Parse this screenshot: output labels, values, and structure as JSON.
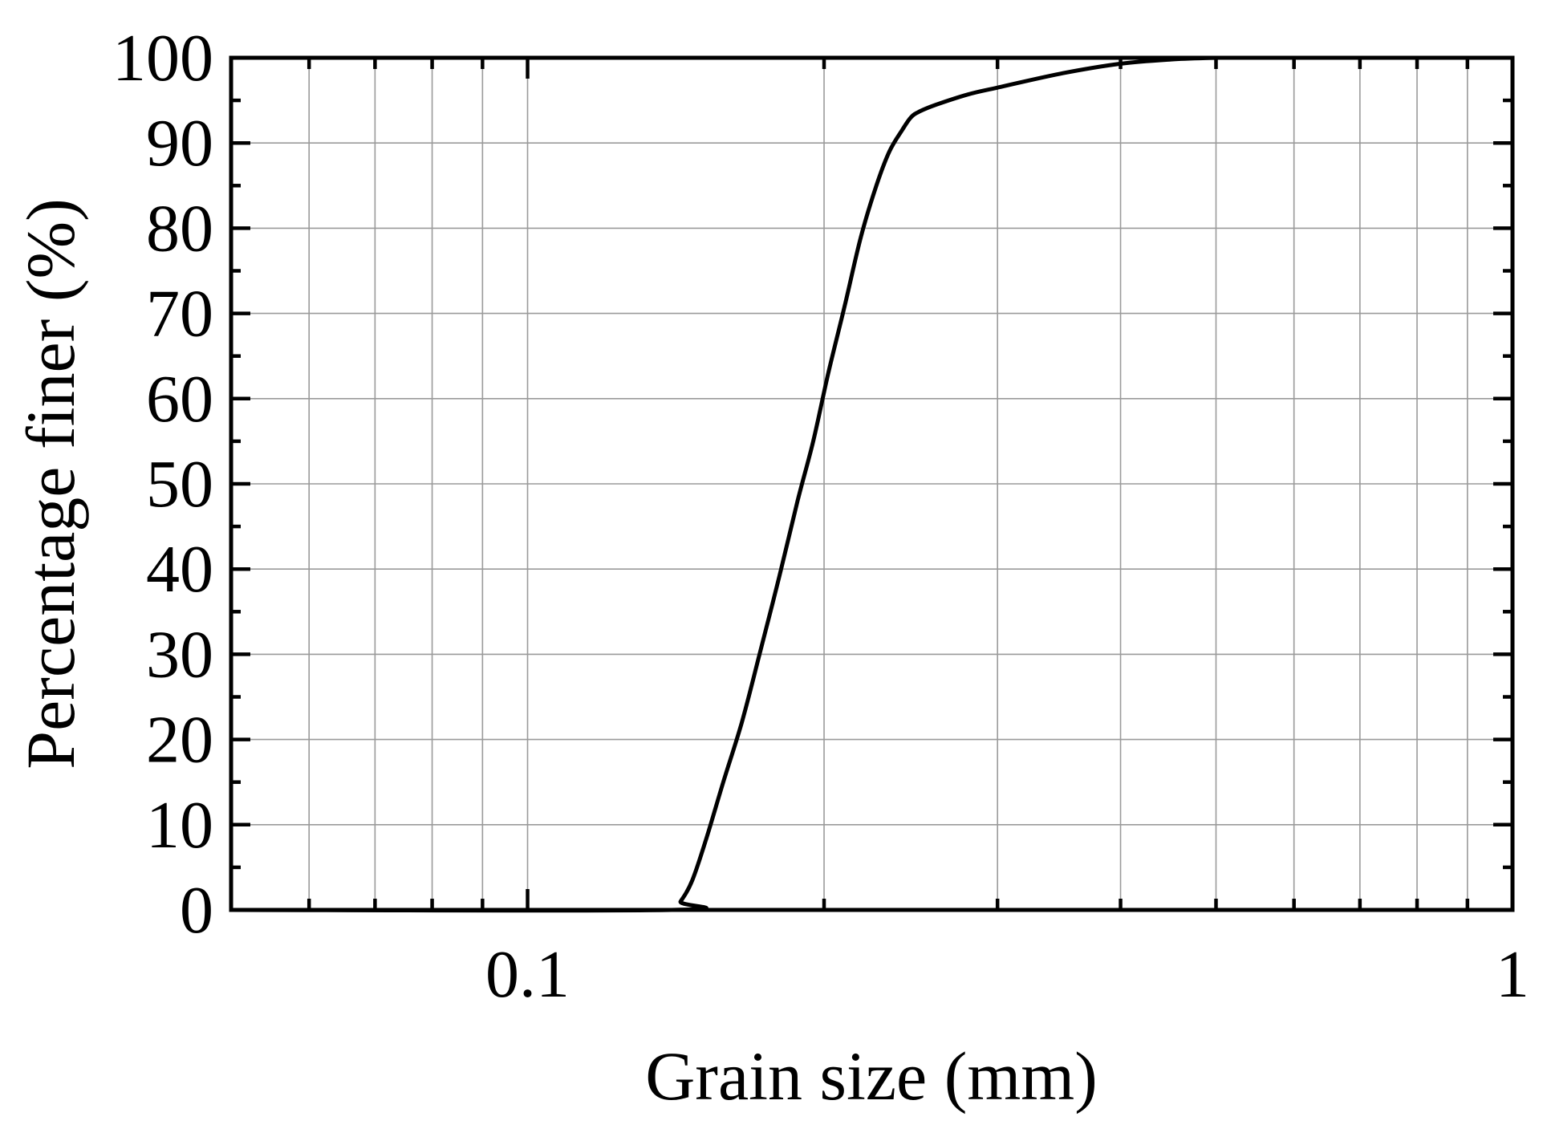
{
  "chart_data": {
    "type": "line",
    "title": "",
    "xlabel": "Grain size (mm)",
    "ylabel": "Percentage finer (%)",
    "x_scale": "log",
    "xlim": [
      0.05,
      1
    ],
    "ylim": [
      0,
      100
    ],
    "x_ticks": [
      0.1,
      1
    ],
    "x_tick_labels": [
      "0.1",
      "1"
    ],
    "y_ticks": [
      0,
      10,
      20,
      30,
      40,
      50,
      60,
      70,
      80,
      90,
      100
    ],
    "y_tick_labels": [
      "0",
      "10",
      "20",
      "30",
      "40",
      "50",
      "60",
      "70",
      "80",
      "90",
      "100"
    ],
    "grid": true,
    "legend": "none",
    "series": [
      {
        "color": "#000000",
        "x": [
          0.05,
          0.14,
          0.143,
          0.147,
          0.152,
          0.158,
          0.165,
          0.172,
          0.18,
          0.188,
          0.195,
          0.202,
          0.21,
          0.218,
          0.226,
          0.233,
          0.24,
          0.245,
          0.25,
          0.26,
          0.28,
          0.3,
          0.35,
          0.4,
          0.45,
          0.5
        ],
        "y": [
          0,
          0,
          1,
          3.5,
          8.5,
          15,
          22,
          30,
          39,
          48,
          55,
          63,
          71,
          79,
          85,
          89,
          91.5,
          93,
          93.7,
          94.5,
          95.7,
          96.5,
          98.2,
          99.3,
          99.8,
          100
        ]
      }
    ]
  }
}
